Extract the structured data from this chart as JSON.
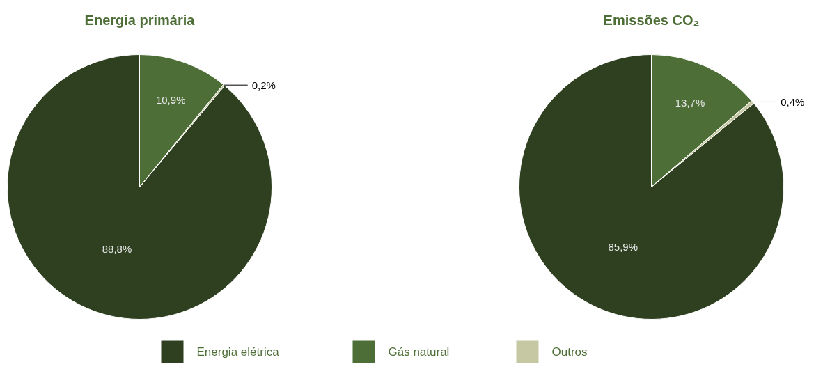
{
  "chart_data": [
    {
      "type": "pie",
      "title": "Energia primária",
      "categories": [
        "Energia elétrica",
        "Gás natural",
        "Outros"
      ],
      "values": [
        88.8,
        10.9,
        0.2
      ],
      "colors": [
        "#2f4020",
        "#4e6e37",
        "#c5c8a2"
      ],
      "value_labels": [
        "88,8%",
        "10,9%",
        "0,2%"
      ],
      "legend": "bottom"
    },
    {
      "type": "pie",
      "title": "Emissões CO₂",
      "values": [
        85.9,
        13.7,
        0.4
      ],
      "colors": [
        "#2f4020",
        "#4e6e37",
        "#c5c8a2"
      ],
      "value_labels": [
        "85,9%",
        "13,7%",
        "0,4%"
      ]
    }
  ]
}
